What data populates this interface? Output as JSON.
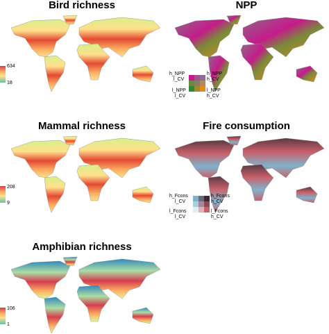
{
  "panels": [
    {
      "title": "Bird richness",
      "legend": {
        "max": "634",
        "min": "18"
      }
    },
    {
      "title": "NPP",
      "legend": {
        "top_left": [
          "h_NPP",
          "l_CV"
        ],
        "top_right": [
          "h_NPP",
          "h_CV"
        ],
        "bottom_left": [
          "l_NPP",
          "l_CV"
        ],
        "bottom_right": [
          "l_NPP",
          "h_CV"
        ]
      }
    },
    {
      "title": "Mammal richness",
      "legend": {
        "max": "208",
        "min": "9"
      }
    },
    {
      "title": "Fire consumption",
      "legend": {
        "top_left": [
          "h_Fcons",
          "l_CV"
        ],
        "top_right": [
          "h_Fcons",
          "h_CV"
        ],
        "bottom_left": [
          "l_Fcons",
          "l_CV"
        ],
        "bottom_right": [
          "l_Fcons",
          "h_CV"
        ]
      }
    },
    {
      "title": "Amphibian richness",
      "legend": {
        "max": "106",
        "min": "1"
      }
    }
  ]
}
